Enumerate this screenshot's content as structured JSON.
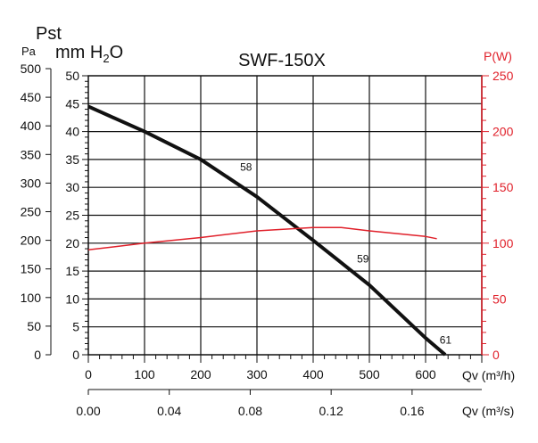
{
  "chart_data": {
    "type": "line",
    "title": "SWF-150X",
    "ylabel_top": "Pst",
    "ylabel_pa": "Pa",
    "ylabel_mm": "mm H",
    "ylabel_mm_sub": "2",
    "ylabel_mm_end": "O",
    "ylabel_right": "P(W)",
    "xlabel": "Qv (m³/h)",
    "xlabel2": "Qv (m³/s)",
    "xlim": [
      0,
      700
    ],
    "ylim_mm": [
      0,
      50
    ],
    "ylim_pa": [
      0,
      500
    ],
    "ylim_w": [
      0,
      250
    ],
    "x_ticks": [
      "0",
      "100",
      "200",
      "300",
      "400",
      "500",
      "600"
    ],
    "x2_ticks": [
      "0.00",
      "0.04",
      "0.08",
      "0.12",
      "0.16"
    ],
    "y_mm_ticks": [
      "0",
      "5",
      "10",
      "15",
      "20",
      "25",
      "30",
      "35",
      "40",
      "45",
      "50"
    ],
    "y_pa_ticks": [
      "0",
      "50",
      "100",
      "150",
      "200",
      "250",
      "300",
      "350",
      "400",
      "450",
      "500"
    ],
    "y_w_ticks": [
      "0",
      "50",
      "100",
      "150",
      "200",
      "250"
    ],
    "grid": true,
    "series": [
      {
        "name": "Pst",
        "axis": "mm",
        "color": "#111111",
        "x": [
          0,
          100,
          200,
          300,
          400,
          500,
          600,
          635
        ],
        "y": [
          44.5,
          40,
          35,
          28.3,
          20.5,
          12.5,
          3,
          0
        ]
      },
      {
        "name": "P(W)",
        "axis": "w",
        "color": "#e0202a",
        "x": [
          0,
          100,
          200,
          300,
          400,
          450,
          500,
          600,
          620
        ],
        "y": [
          94,
          100,
          105,
          111,
          114,
          114,
          111,
          106,
          104
        ]
      }
    ],
    "annotations": [
      {
        "text": "58",
        "x": 270,
        "y": 33
      },
      {
        "text": "59",
        "x": 478,
        "y": 16.5
      },
      {
        "text": "61",
        "x": 625,
        "y": 2
      }
    ]
  }
}
